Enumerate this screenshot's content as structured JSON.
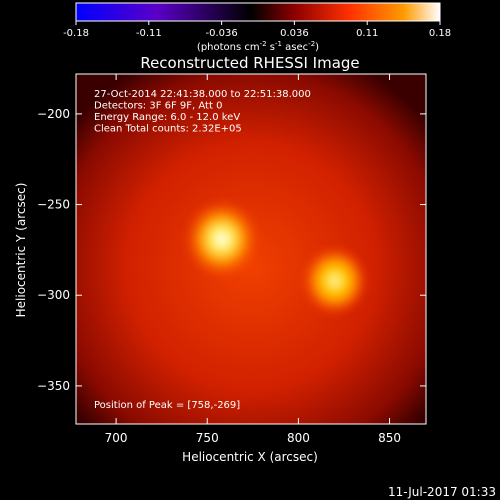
{
  "chart_data": {
    "type": "heatmap",
    "title": "Reconstructed RHESSI Image",
    "xlabel": "Heliocentric X (arcsec)",
    "ylabel": "Heliocentric Y (arcsec)",
    "xlim": [
      678,
      870
    ],
    "ylim": [
      -371,
      -178
    ],
    "x_ticks": [
      700,
      750,
      800,
      850
    ],
    "y_ticks": [
      -200,
      -250,
      -300,
      -350
    ],
    "colorbar": {
      "ticks": [
        "-0.18",
        "-0.11",
        "-0.036",
        "0.036",
        "0.11",
        "0.18"
      ],
      "range": [
        -0.18,
        0.18
      ],
      "unit_label_parts": [
        "(photons cm",
        "-2",
        " s",
        "-1",
        " asec",
        "-2",
        ")"
      ],
      "colormap": [
        "#0000ff",
        "#5a00c8",
        "#000000",
        "#8c0000",
        "#ff3000",
        "#ff9a00",
        "#ffffff"
      ]
    },
    "annotations": [
      "27-Oct-2014 22:41:38.000 to 22:51:38.000",
      "Detectors: 3F 6F 9F, Att 0",
      "Energy Range: 6.0 - 12.0 keV",
      "Clean    Total counts: 2.32E+05"
    ],
    "peak_label": "Position of Peak = [758,-269]",
    "sources": [
      {
        "x": 758,
        "y": -269,
        "peak": 0.18
      },
      {
        "x": 820,
        "y": -292,
        "peak": 0.14
      }
    ],
    "background_level": 0.06
  },
  "timestamp": "11-Jul-2017 01:33"
}
